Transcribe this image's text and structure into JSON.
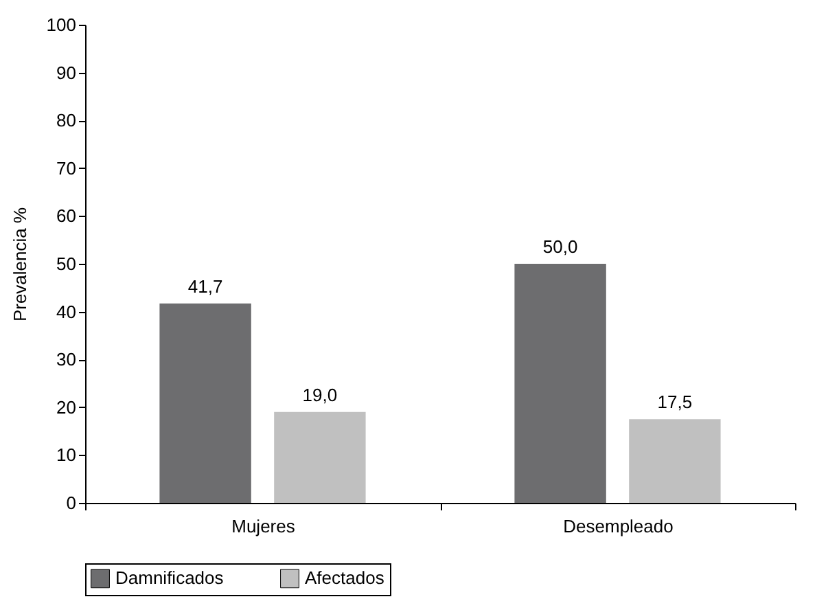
{
  "chart_data": {
    "type": "bar",
    "ylabel": "Prevalencia %",
    "categories": [
      "Mujeres",
      "Desempleado"
    ],
    "series": [
      {
        "name": "Damnificados",
        "color": "#6d6d6f",
        "values": [
          41.7,
          50.0
        ],
        "value_labels": [
          "41,7",
          "50,0"
        ]
      },
      {
        "name": "Afectados",
        "color": "#c0c0c0",
        "values": [
          19.0,
          17.5
        ],
        "value_labels": [
          "19,0",
          "17,5"
        ]
      }
    ],
    "ylim": [
      0,
      100
    ],
    "yticks": [
      0,
      10,
      20,
      30,
      40,
      50,
      60,
      70,
      80,
      90,
      100
    ],
    "grid": false,
    "legend": "bottom"
  }
}
